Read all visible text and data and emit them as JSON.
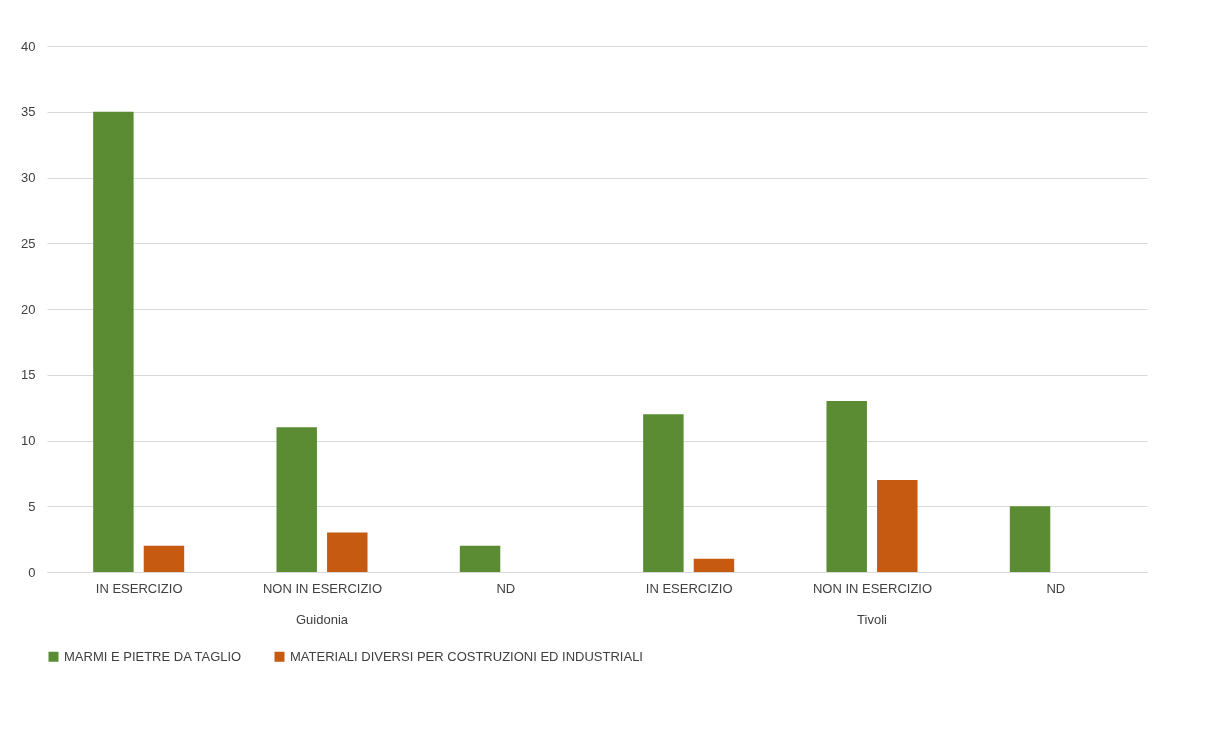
{
  "chart_data": {
    "type": "bar",
    "categories": [
      "IN ESERCIZIO",
      "NON IN ESERCIZIO",
      "ND",
      "IN ESERCIZIO",
      "NON IN ESERCIZIO",
      "ND"
    ],
    "annotations": [
      "Guidonia",
      "Tivoli"
    ],
    "series": [
      {
        "name": "MARMI E PIETRE DA TAGLIO",
        "color": "#5b8c33",
        "values": [
          35,
          11,
          2,
          12,
          13,
          5
        ]
      },
      {
        "name": "MATERIALI DIVERSI PER COSTRUZIONI ED INDUSTRIALI",
        "color": "#c65a11",
        "values": [
          2,
          3,
          null,
          1,
          7,
          null
        ]
      }
    ],
    "ylim": [
      0,
      40
    ],
    "yticks": [
      0,
      5,
      10,
      15,
      20,
      25,
      30,
      35,
      40
    ],
    "grid": "y",
    "legend": "bottom"
  }
}
